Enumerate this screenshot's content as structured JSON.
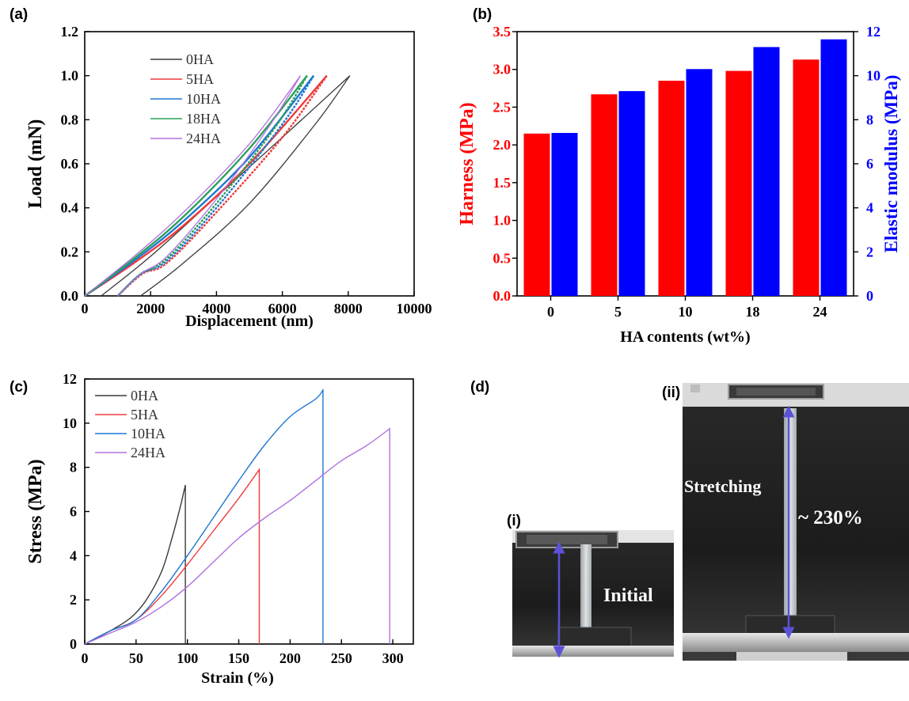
{
  "figure": {
    "panel_labels": [
      "(a)",
      "(b)",
      "(c)",
      "(d)"
    ],
    "photo": {
      "sub_labels": [
        "(i)",
        "(ii)"
      ],
      "initial_text": "Initial",
      "stretch_text": "Stretching",
      "elongation_text": "~ 230%"
    }
  },
  "colors": {
    "0HA": "#3a3a3a",
    "5HA": "#ef3b3b",
    "10HA": "#1f77d4",
    "18HA": "#2ca05a",
    "24HA": "#b070e0",
    "harness_bar": "#ff0000",
    "modulus_bar": "#0000ff"
  },
  "chart_data": [
    {
      "id": "a",
      "type": "line",
      "xlabel": "Displacement (nm)",
      "ylabel": "Load (mN)",
      "xlim": [
        0,
        10000
      ],
      "ylim": [
        0,
        1.2
      ],
      "xticks": [
        "0",
        "2000",
        "4000",
        "6000",
        "8000",
        "10000"
      ],
      "yticks": [
        "0.0",
        "0.2",
        "0.4",
        "0.6",
        "0.8",
        "1.0",
        "1.2"
      ],
      "legend": "top-left",
      "series": [
        {
          "name": "0HA",
          "loading": [
            [
              500,
              0
            ],
            [
              2000,
              0.18
            ],
            [
              4000,
              0.45
            ],
            [
              6000,
              0.72
            ],
            [
              8050,
              1.0
            ]
          ],
          "unloading": [
            [
              8050,
              1.0
            ],
            [
              7000,
              0.78
            ],
            [
              5000,
              0.42
            ],
            [
              3000,
              0.15
            ],
            [
              1700,
              0.0
            ]
          ]
        },
        {
          "name": "5HA",
          "loading": [
            [
              0,
              0
            ],
            [
              1500,
              0.15
            ],
            [
              3000,
              0.32
            ],
            [
              5000,
              0.6
            ],
            [
              7350,
              1.0
            ]
          ],
          "unloading": [
            [
              7350,
              1.0
            ],
            [
              6000,
              0.72
            ],
            [
              4000,
              0.38
            ],
            [
              2500,
              0.15
            ],
            [
              1750,
              0.1
            ],
            [
              1000,
              0.0
            ]
          ]
        },
        {
          "name": "10HA",
          "loading": [
            [
              0,
              0
            ],
            [
              1500,
              0.16
            ],
            [
              3000,
              0.34
            ],
            [
              5000,
              0.63
            ],
            [
              6950,
              1.0
            ]
          ],
          "unloading": [
            [
              6950,
              1.0
            ],
            [
              6000,
              0.78
            ],
            [
              4000,
              0.4
            ],
            [
              2500,
              0.16
            ],
            [
              1700,
              0.1
            ],
            [
              1000,
              0.0
            ]
          ]
        },
        {
          "name": "18HA",
          "loading": [
            [
              0,
              0
            ],
            [
              1500,
              0.17
            ],
            [
              3000,
              0.36
            ],
            [
              5000,
              0.67
            ],
            [
              6750,
              1.0
            ]
          ],
          "unloading": [
            [
              6750,
              1.0
            ],
            [
              5800,
              0.77
            ],
            [
              4000,
              0.42
            ],
            [
              2500,
              0.17
            ],
            [
              1700,
              0.1
            ],
            [
              1000,
              0.0
            ]
          ]
        },
        {
          "name": "24HA",
          "loading": [
            [
              0,
              0
            ],
            [
              1500,
              0.18
            ],
            [
              3000,
              0.38
            ],
            [
              5000,
              0.69
            ],
            [
              6550,
              1.0
            ]
          ],
          "unloading": [
            [
              6550,
              1.0
            ],
            [
              5600,
              0.77
            ],
            [
              4000,
              0.44
            ],
            [
              2500,
              0.18
            ],
            [
              1700,
              0.1
            ],
            [
              1000,
              0.0
            ]
          ]
        }
      ]
    },
    {
      "id": "b",
      "type": "bar",
      "categories": [
        "0",
        "5",
        "10",
        "18",
        "24"
      ],
      "xlabel": "HA contents (wt%)",
      "ylabel": "Harness (MPa)",
      "ylabel_right": "Elastic modulus (MPa)",
      "ylim": [
        0,
        3.5
      ],
      "ylim_right": [
        0,
        12
      ],
      "yticks": [
        "0.0",
        "0.5",
        "1.0",
        "1.5",
        "2.0",
        "2.5",
        "3.0",
        "3.5"
      ],
      "yticks_right": [
        "0",
        "2",
        "4",
        "6",
        "8",
        "10",
        "12"
      ],
      "series": [
        {
          "name": "Harness",
          "axis": "left",
          "values": [
            2.15,
            2.67,
            2.85,
            2.98,
            3.13
          ]
        },
        {
          "name": "Elastic modulus",
          "axis": "right",
          "values": [
            7.4,
            9.3,
            10.3,
            11.3,
            11.65
          ]
        }
      ]
    },
    {
      "id": "c",
      "type": "line",
      "xlabel": "Strain (%)",
      "ylabel": "Stress (MPa)",
      "xlim": [
        0,
        320
      ],
      "ylim": [
        0,
        12
      ],
      "xticks": [
        "0",
        "50",
        "100",
        "150",
        "200",
        "250",
        "300"
      ],
      "yticks": [
        "0",
        "2",
        "4",
        "6",
        "8",
        "10",
        "12"
      ],
      "legend": "top-left",
      "series": [
        {
          "name": "0HA",
          "points": [
            [
              0,
              0
            ],
            [
              25,
              0.6
            ],
            [
              45,
              1.2
            ],
            [
              60,
              2.0
            ],
            [
              75,
              3.3
            ],
            [
              85,
              4.8
            ],
            [
              93,
              6.2
            ],
            [
              98,
              7.2
            ],
            [
              98,
              0
            ]
          ]
        },
        {
          "name": "5HA",
          "points": [
            [
              0,
              0
            ],
            [
              25,
              0.6
            ],
            [
              50,
              1.1
            ],
            [
              75,
              2.2
            ],
            [
              100,
              3.6
            ],
            [
              125,
              5.1
            ],
            [
              150,
              6.6
            ],
            [
              170,
              7.9
            ],
            [
              170,
              0
            ]
          ]
        },
        {
          "name": "10HA",
          "points": [
            [
              0,
              0
            ],
            [
              25,
              0.6
            ],
            [
              50,
              1.1
            ],
            [
              75,
              2.4
            ],
            [
              100,
              4.0
            ],
            [
              125,
              5.7
            ],
            [
              150,
              7.4
            ],
            [
              175,
              9.0
            ],
            [
              200,
              10.3
            ],
            [
              225,
              11.1
            ],
            [
              232,
              11.5
            ],
            [
              232,
              0
            ]
          ]
        },
        {
          "name": "24HA",
          "points": [
            [
              0,
              0
            ],
            [
              25,
              0.5
            ],
            [
              50,
              1.0
            ],
            [
              75,
              1.7
            ],
            [
              100,
              2.6
            ],
            [
              125,
              3.7
            ],
            [
              150,
              4.8
            ],
            [
              175,
              5.7
            ],
            [
              200,
              6.5
            ],
            [
              225,
              7.4
            ],
            [
              250,
              8.3
            ],
            [
              275,
              9.0
            ],
            [
              297,
              9.75
            ],
            [
              297,
              0
            ]
          ]
        }
      ]
    }
  ]
}
